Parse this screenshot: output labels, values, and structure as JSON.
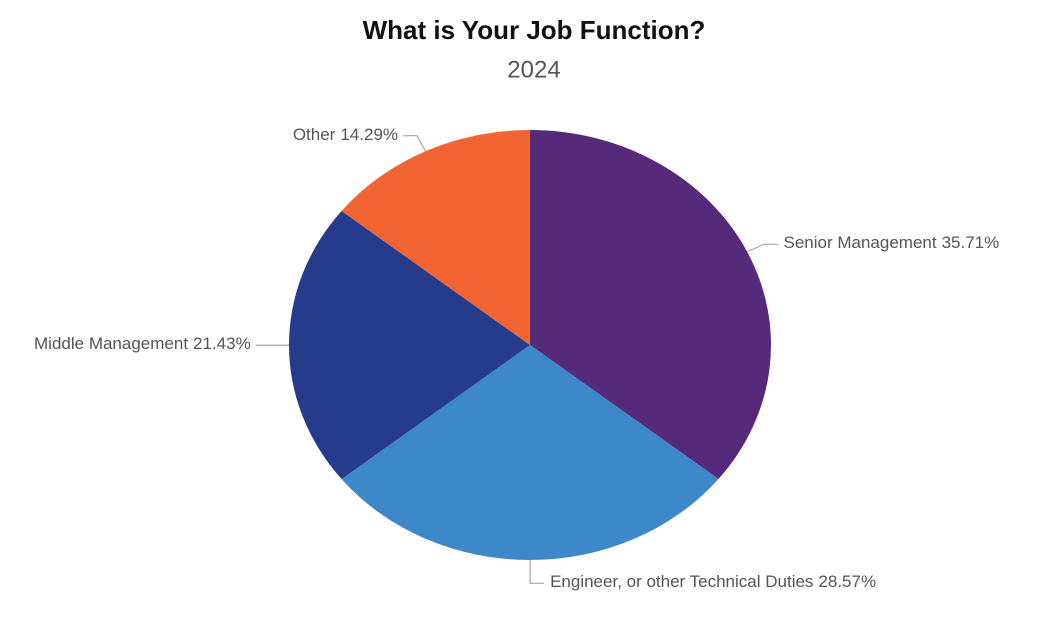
{
  "chart_data": {
    "type": "pie",
    "title": "What is Your Job Function?",
    "subtitle": "2024",
    "categories": [
      "Senior Management",
      "Engineer, or other Technical Duties",
      "Middle Management",
      "Other"
    ],
    "values": [
      35.71,
      28.57,
      21.43,
      14.29
    ],
    "value_labels": [
      "35.71%",
      "28.57%",
      "21.43%",
      "14.29%"
    ],
    "colors": [
      "#562a7a",
      "#3d88c8",
      "#263b8c",
      "#f26532"
    ]
  }
}
